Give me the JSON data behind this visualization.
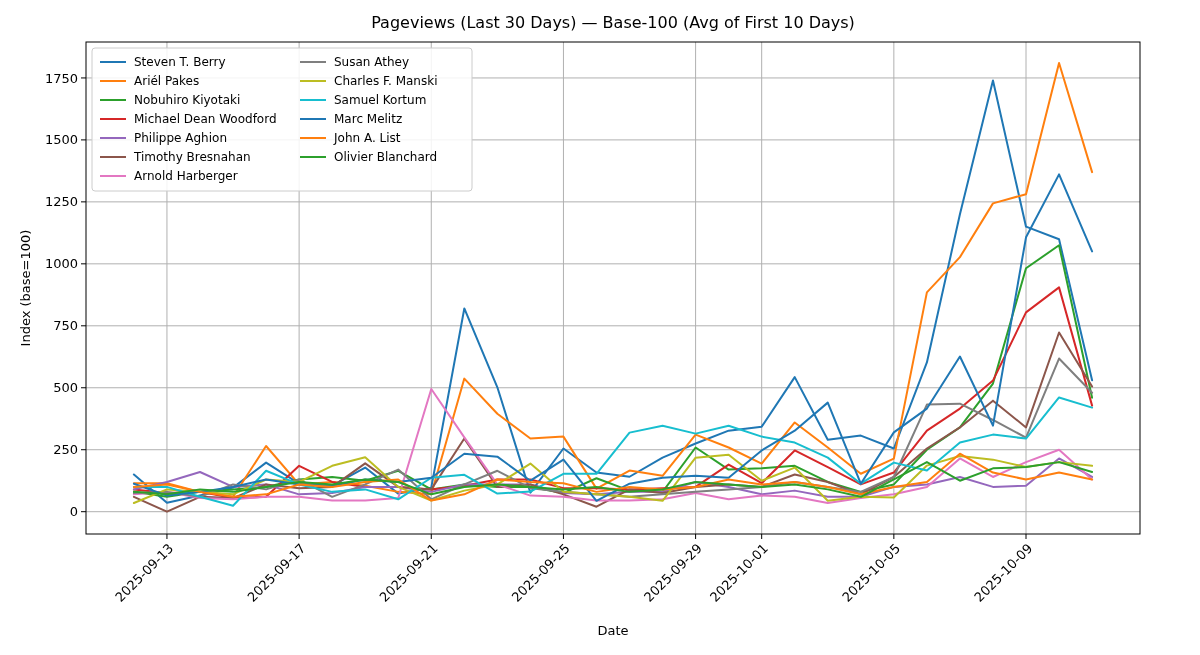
{
  "chart_data": {
    "type": "line",
    "title": "Pageviews (Last 30 Days) — Base-100 (Avg of First 10 Days)",
    "xlabel": "Date",
    "ylabel": "Index (base=100)",
    "x": [
      "2025-09-12",
      "2025-09-13",
      "2025-09-14",
      "2025-09-15",
      "2025-09-16",
      "2025-09-17",
      "2025-09-18",
      "2025-09-19",
      "2025-09-20",
      "2025-09-21",
      "2025-09-22",
      "2025-09-23",
      "2025-09-24",
      "2025-09-25",
      "2025-09-26",
      "2025-09-27",
      "2025-09-28",
      "2025-09-29",
      "2025-09-30",
      "2025-10-01",
      "2025-10-02",
      "2025-10-03",
      "2025-10-04",
      "2025-10-05",
      "2025-10-06",
      "2025-10-07",
      "2025-10-08",
      "2025-10-09",
      "2025-10-10",
      "2025-10-11"
    ],
    "xlim": [
      "2025-09-10T13:12",
      "2025-10-12T10:48"
    ],
    "xticks": [
      "2025-09-13",
      "2025-09-17",
      "2025-09-21",
      "2025-09-25",
      "2025-09-29",
      "2025-10-01",
      "2025-10-05",
      "2025-10-09"
    ],
    "ylim": [
      -90,
      1895
    ],
    "yticks": [
      0,
      250,
      500,
      750,
      1000,
      1250,
      1500,
      1750
    ],
    "grid": true,
    "legend": "top left",
    "line_style": "solid",
    "marker": "none",
    "series": [
      {
        "name": "Steven T. Berry",
        "color": "#1f77b4",
        "values": [
          150,
          36,
          65,
          97,
          198,
          113,
          105,
          178,
          73,
          97,
          820,
          502,
          77,
          255,
          158,
          141,
          218,
          275,
          327,
          343,
          543,
          290,
          307,
          255,
          602,
          1200,
          1740,
          1150,
          1099,
          530
        ]
      },
      {
        "name": "Ariél Pakes",
        "color": "#ff7f0e",
        "values": [
          115,
          115,
          80,
          60,
          265,
          110,
          120,
          105,
          80,
          70,
          537,
          395,
          295,
          303,
          93,
          166,
          145,
          311,
          259,
          194,
          360,
          259,
          153,
          214,
          885,
          1027,
          1244,
          1281,
          1810,
          1370
        ]
      },
      {
        "name": "Nobuhiro Kiyotaki",
        "color": "#2ca02c",
        "values": [
          80,
          60,
          80,
          90,
          100,
          130,
          140,
          125,
          165,
          90,
          110,
          100,
          100,
          75,
          135,
          85,
          80,
          259,
          170,
          175,
          185,
          120,
          80,
          110,
          250,
          340,
          517,
          982,
          1075,
          460
        ]
      },
      {
        "name": "Michael Dean Woodford",
        "color": "#d62728",
        "values": [
          90,
          75,
          80,
          55,
          60,
          185,
          120,
          100,
          100,
          90,
          105,
          130,
          130,
          95,
          95,
          90,
          95,
          100,
          190,
          115,
          247,
          180,
          110,
          158,
          327,
          416,
          529,
          804,
          905,
          428
        ]
      },
      {
        "name": "Philippe Aghion",
        "color": "#9467bd",
        "values": [
          90,
          120,
          160,
          100,
          110,
          70,
          75,
          100,
          100,
          80,
          110,
          110,
          110,
          75,
          70,
          80,
          80,
          120,
          100,
          70,
          85,
          60,
          60,
          100,
          110,
          140,
          100,
          105,
          215,
          140
        ]
      },
      {
        "name": "Timothy Bresnahan",
        "color": "#8c564b",
        "values": [
          60,
          0,
          60,
          55,
          110,
          95,
          100,
          195,
          100,
          90,
          295,
          100,
          110,
          70,
          20,
          90,
          75,
          100,
          110,
          100,
          150,
          120,
          70,
          140,
          255,
          340,
          448,
          340,
          723,
          505
        ]
      },
      {
        "name": "Arnold Harberger",
        "color": "#e377c2",
        "values": [
          70,
          80,
          55,
          50,
          60,
          60,
          45,
          45,
          55,
          495,
          300,
          110,
          65,
          60,
          45,
          45,
          50,
          75,
          50,
          65,
          60,
          35,
          55,
          70,
          100,
          215,
          140,
          200,
          250,
          130
        ]
      },
      {
        "name": "Susan Athey",
        "color": "#7f7f7f",
        "values": [
          75,
          80,
          60,
          110,
          90,
          130,
          60,
          110,
          170,
          50,
          110,
          165,
          95,
          80,
          70,
          60,
          70,
          80,
          90,
          100,
          120,
          100,
          80,
          140,
          432,
          436,
          370,
          299,
          618,
          480
        ]
      },
      {
        "name": "Charles F. Manski",
        "color": "#bcbd22",
        "values": [
          35,
          90,
          80,
          70,
          130,
          120,
          185,
          220,
          100,
          45,
          85,
          110,
          194,
          80,
          70,
          60,
          44,
          218,
          230,
          125,
          178,
          44,
          60,
          57,
          186,
          225,
          210,
          180,
          200,
          185
        ]
      },
      {
        "name": "Samuel Kortum",
        "color": "#17becf",
        "values": [
          100,
          100,
          60,
          24,
          165,
          110,
          80,
          90,
          50,
          137,
          149,
          73,
          81,
          153,
          153,
          319,
          347,
          315,
          347,
          303,
          279,
          218,
          113,
          198,
          166,
          279,
          311,
          295,
          461,
          420
        ]
      },
      {
        "name": "Marc Melitz",
        "color": "#1f77b4",
        "values": [
          113,
          65,
          80,
          100,
          130,
          110,
          105,
          130,
          120,
          137,
          234,
          222,
          125,
          210,
          44,
          113,
          137,
          145,
          137,
          247,
          327,
          440,
          113,
          320,
          416,
          626,
          347,
          1107,
          1361,
          1050
        ]
      },
      {
        "name": "John A. List",
        "color": "#ff7f0e",
        "values": [
          100,
          110,
          80,
          60,
          70,
          110,
          100,
          120,
          130,
          45,
          70,
          130,
          120,
          115,
          80,
          100,
          90,
          100,
          130,
          110,
          120,
          100,
          70,
          100,
          120,
          234,
          158,
          130,
          158,
          130
        ]
      },
      {
        "name": "Olivier Blanchard",
        "color": "#2ca02c",
        "values": [
          80,
          70,
          90,
          80,
          100,
          120,
          110,
          130,
          120,
          70,
          100,
          110,
          100,
          90,
          100,
          80,
          90,
          120,
          110,
          100,
          110,
          90,
          60,
          130,
          200,
          125,
          175,
          180,
          200,
          160
        ]
      }
    ]
  }
}
